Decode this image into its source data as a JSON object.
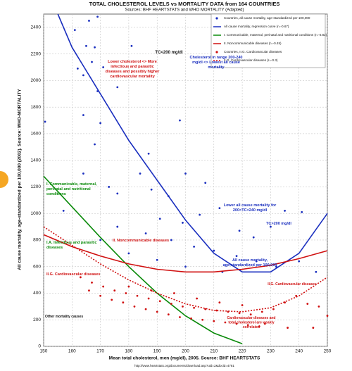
{
  "chart_data": {
    "type": "scatter",
    "title": "TOTAL CHOLESTEROL LEVELS vs MORTALITY DATA from 164 COUNTRIES",
    "subtitle": "Sources: BHF HEARTSTATS and WHO MORTALITY (Adapted)",
    "x_label": "Mean total cholesterol, men (mg/dl), 2005. Source: BHF HEARTSTATS",
    "y_label": "All cause mortality, age-standardized per 100,000 (2002). Source: WHO-MORTALITY",
    "footer": "http://www.heartstats.org/documents/download.asp?uid=2&docid=4781",
    "xlim": [
      150,
      250
    ],
    "xticks": [
      150,
      160,
      170,
      180,
      190,
      200,
      210,
      220,
      230,
      240,
      250
    ],
    "ylim": [
      0,
      2500
    ],
    "yticks": [
      0,
      200,
      400,
      600,
      800,
      1000,
      1200,
      1400,
      1600,
      1800,
      2000,
      2200,
      2400
    ],
    "grid": true,
    "annotations": [
      "TC<200 mg/dl",
      "Lower cholesterol <> More infectious and parasitic diseases and possibly higher cardiovascular mortality",
      "Cholesterol in range 200-240 mg/dl <> Lowest all cause mortality",
      "Lower all cause mortality for 200<TC<240 mg/dl",
      "TC>200 mg/dl",
      "I. Communicable, maternal, perinatal and nutritional conditions",
      "I.A. Infectious and parasitic diseases",
      "II. Noncommunicable diseases",
      "II.G. Cardiovascular diseases",
      "All cause mortality, age-standardized per 100,000",
      "II.G. Cardiovascular diseases",
      "Cardiovascular diseases and total cholesterol are weakly correlated",
      "Other mortality causes"
    ],
    "series": [
      {
        "name": "Countries, all cause mortality, age-standardized per 100,000",
        "type": "scatter",
        "color": "#1a2fbf",
        "x": [
          166,
          169,
          161,
          165,
          168,
          167,
          162,
          171,
          164,
          169,
          181,
          176,
          164,
          170,
          150.5,
          168,
          164,
          173,
          176,
          187,
          198,
          184,
          188,
          194,
          200,
          207,
          212,
          205,
          191,
          199,
          219,
          224,
          230,
          235,
          241,
          176,
          186,
          195,
          203,
          210,
          218,
          225,
          232,
          240,
          246,
          180,
          190,
          200,
          213,
          170,
          157
        ],
        "values": [
          2450,
          2480,
          2380,
          2260,
          2250,
          2140,
          2090,
          2100,
          2040,
          1920,
          2260,
          1950,
          1740,
          1680,
          1690,
          1520,
          1300,
          1200,
          1150,
          1450,
          1700,
          1300,
          1180,
          1130,
          1300,
          1230,
          1040,
          990,
          960,
          930,
          870,
          820,
          900,
          1020,
          1010,
          900,
          850,
          800,
          750,
          720,
          680,
          640,
          600,
          640,
          560,
          700,
          650,
          600,
          560,
          800,
          1020
        ]
      },
      {
        "name": "All cause mortality, regression curve (r=-0.67)",
        "type": "line",
        "color": "#1a2fbf",
        "x": [
          155,
          160,
          170,
          180,
          190,
          200,
          210,
          220,
          230,
          240,
          250
        ],
        "values": [
          2500,
          2250,
          1900,
          1550,
          1250,
          950,
          700,
          560,
          560,
          700,
          1000
        ]
      },
      {
        "name": "I. Communicable, maternal, perinatal and nutritional conditions (r=-0.82)",
        "type": "line",
        "color": "#0a8a0a",
        "x": [
          150,
          160,
          170,
          180,
          190,
          200,
          210,
          220
        ],
        "values": [
          1280,
          1050,
          820,
          600,
          400,
          230,
          100,
          20
        ]
      },
      {
        "name": "II. Noncommunicable diseases (r=-0.45)",
        "type": "line",
        "color": "#d01010",
        "x": [
          150,
          160,
          170,
          180,
          190,
          200,
          210,
          220,
          230,
          240,
          250
        ],
        "values": [
          840,
          750,
          680,
          620,
          580,
          560,
          560,
          580,
          610,
          660,
          720
        ]
      },
      {
        "name": "Countries, II.G. Cardiovascular diseases",
        "type": "scatter",
        "color": "#d01010",
        "x": [
          163,
          167,
          171,
          175,
          179,
          183,
          187,
          191,
          195,
          199,
          203,
          207,
          211,
          215,
          219,
          223,
          227,
          231,
          235,
          239,
          243,
          247,
          166,
          170,
          174,
          178,
          182,
          186,
          190,
          194,
          198,
          202,
          206,
          210,
          214,
          218,
          222,
          226,
          180,
          188,
          196,
          204,
          212,
          220,
          228,
          236,
          245,
          250
        ],
        "values": [
          520,
          480,
          450,
          420,
          400,
          380,
          360,
          340,
          320,
          300,
          290,
          280,
          270,
          260,
          250,
          240,
          260,
          280,
          330,
          380,
          320,
          300,
          420,
          380,
          350,
          330,
          300,
          280,
          260,
          240,
          220,
          210,
          200,
          190,
          180,
          170,
          160,
          150,
          450,
          420,
          400,
          360,
          330,
          310,
          170,
          140,
          140,
          230
        ]
      },
      {
        "name": "II.G. Cardiovascular diseases (r=-0.3)",
        "type": "line",
        "style": "dotted",
        "color": "#d01010",
        "x": [
          150,
          160,
          170,
          180,
          190,
          200,
          210,
          220,
          230,
          240,
          250
        ],
        "values": [
          900,
          760,
          620,
          500,
          400,
          320,
          270,
          260,
          290,
          380,
          520
        ]
      }
    ]
  }
}
